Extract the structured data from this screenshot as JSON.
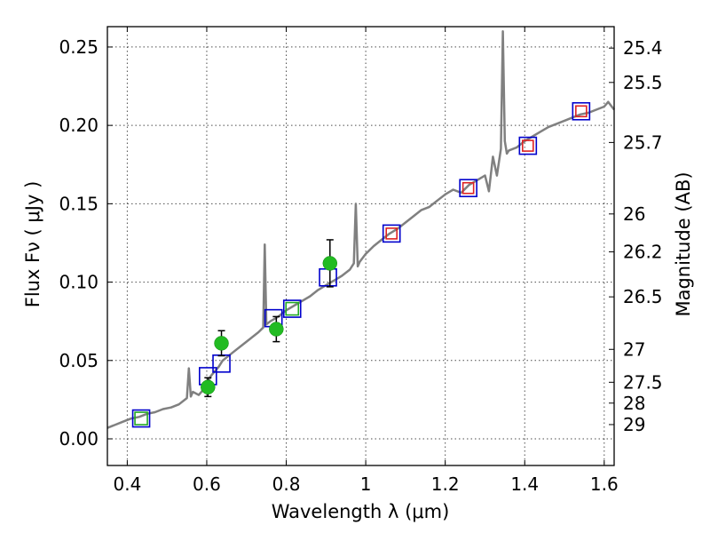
{
  "chart_data": {
    "type": "scatter",
    "xlabel": "Wavelength  λ (μm)",
    "ylabel": "Flux  Fν  ( μJy )",
    "y2label": "Magnitude (AB)",
    "xlim": [
      0.35,
      1.625
    ],
    "ylim": [
      -0.017,
      0.263
    ],
    "xticks": [
      0.4,
      0.6,
      0.8,
      1.0,
      1.2,
      1.4,
      1.6
    ],
    "xtick_labels": [
      "0.4",
      "0.6",
      "0.8",
      "1",
      "1.2",
      "1.4",
      "1.6"
    ],
    "yticks": [
      0.0,
      0.05,
      0.1,
      0.15,
      0.2,
      0.25
    ],
    "ytick_labels": [
      "0.00",
      "0.05",
      "0.10",
      "0.15",
      "0.20",
      "0.25"
    ],
    "magnitude_ticks": [
      {
        "label": "25.4",
        "flux": 0.2493
      },
      {
        "label": "25.5",
        "flux": 0.2274
      },
      {
        "label": "25.7",
        "flux": 0.1891
      },
      {
        "label": "26",
        "flux": 0.1435
      },
      {
        "label": "26.2",
        "flux": 0.1193
      },
      {
        "label": "26.5",
        "flux": 0.0906
      },
      {
        "label": "27",
        "flux": 0.0571
      },
      {
        "label": "27.5",
        "flux": 0.0361
      },
      {
        "label": "28",
        "flux": 0.0228
      },
      {
        "label": "29",
        "flux": 0.0091
      }
    ],
    "grid": true,
    "model_spectrum": {
      "color": "#808080",
      "x": [
        0.35,
        0.37,
        0.39,
        0.41,
        0.43,
        0.45,
        0.47,
        0.49,
        0.51,
        0.53,
        0.55,
        0.555,
        0.56,
        0.565,
        0.58,
        0.59,
        0.6,
        0.61,
        0.62,
        0.63,
        0.64,
        0.65,
        0.67,
        0.69,
        0.71,
        0.73,
        0.742,
        0.746,
        0.75,
        0.76,
        0.78,
        0.8,
        0.82,
        0.84,
        0.86,
        0.88,
        0.9,
        0.92,
        0.94,
        0.96,
        0.97,
        0.975,
        0.98,
        0.985,
        1.0,
        1.02,
        1.04,
        1.06,
        1.08,
        1.1,
        1.12,
        1.14,
        1.16,
        1.18,
        1.2,
        1.22,
        1.24,
        1.26,
        1.28,
        1.3,
        1.31,
        1.32,
        1.33,
        1.34,
        1.345,
        1.35,
        1.355,
        1.36,
        1.38,
        1.4,
        1.42,
        1.44,
        1.46,
        1.48,
        1.5,
        1.52,
        1.54,
        1.56,
        1.58,
        1.6,
        1.61,
        1.625
      ],
      "y": [
        0.007,
        0.009,
        0.011,
        0.013,
        0.014,
        0.016,
        0.017,
        0.019,
        0.02,
        0.022,
        0.026,
        0.045,
        0.027,
        0.03,
        0.028,
        0.031,
        0.034,
        0.04,
        0.043,
        0.046,
        0.05,
        0.052,
        0.056,
        0.06,
        0.064,
        0.068,
        0.071,
        0.124,
        0.073,
        0.075,
        0.078,
        0.082,
        0.085,
        0.088,
        0.091,
        0.095,
        0.098,
        0.101,
        0.104,
        0.108,
        0.112,
        0.15,
        0.11,
        0.113,
        0.118,
        0.123,
        0.127,
        0.131,
        0.134,
        0.138,
        0.142,
        0.146,
        0.148,
        0.152,
        0.156,
        0.159,
        0.157,
        0.162,
        0.165,
        0.168,
        0.158,
        0.18,
        0.168,
        0.185,
        0.26,
        0.19,
        0.182,
        0.184,
        0.186,
        0.19,
        0.193,
        0.196,
        0.199,
        0.201,
        0.203,
        0.205,
        0.207,
        0.208,
        0.21,
        0.212,
        0.215,
        0.21
      ]
    },
    "series": [
      {
        "marker": "square",
        "color": "#0000cc",
        "size": 19,
        "x": [
          0.435,
          0.603,
          0.637,
          0.768,
          0.815,
          0.905,
          1.065,
          1.258,
          1.408,
          1.542
        ],
        "y": [
          0.013,
          0.04,
          0.048,
          0.077,
          0.083,
          0.103,
          0.131,
          0.16,
          0.187,
          0.209
        ]
      },
      {
        "marker": "square",
        "color": "#22aa22",
        "size": 14,
        "x": [
          0.435,
          0.815
        ],
        "y": [
          0.013,
          0.083
        ]
      },
      {
        "marker": "square",
        "color": "#dd2222",
        "size": 12,
        "x": [
          1.065,
          1.258,
          1.408,
          1.542
        ],
        "y": [
          0.131,
          0.16,
          0.187,
          0.209
        ]
      },
      {
        "marker": "circle",
        "color": "#22bb22",
        "x": [
          0.603,
          0.637,
          0.775,
          0.91
        ],
        "y": [
          0.033,
          0.061,
          0.07,
          0.112
        ],
        "yerr": [
          0.006,
          0.008,
          0.008,
          0.015
        ]
      }
    ]
  }
}
